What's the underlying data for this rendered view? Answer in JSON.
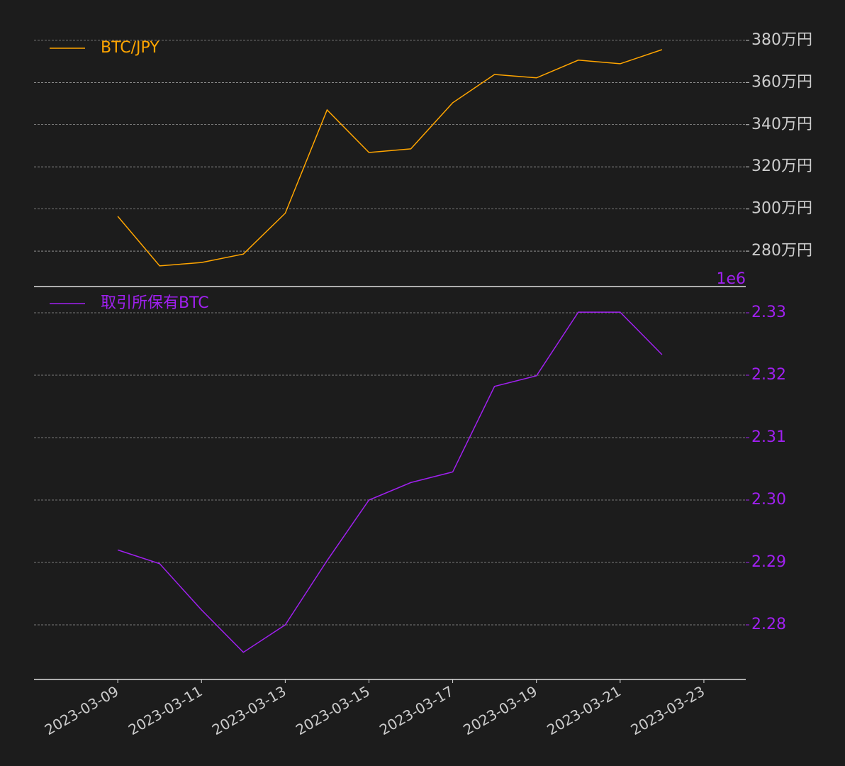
{
  "chart_data": [
    {
      "type": "line",
      "x": [
        "2023-03-09",
        "2023-03-10",
        "2023-03-11",
        "2023-03-12",
        "2023-03-13",
        "2023-03-14",
        "2023-03-15",
        "2023-03-16",
        "2023-03-17",
        "2023-03-18",
        "2023-03-19",
        "2023-03-20",
        "2023-03-21",
        "2023-03-22"
      ],
      "series": [
        {
          "name": "BTC/JPY",
          "color": "#ffa500",
          "values": [
            2965000,
            2730000,
            2746000,
            2786000,
            2980000,
            3470000,
            3268000,
            3285000,
            3504000,
            3638000,
            3622000,
            3706000,
            3689000,
            3756000
          ]
        }
      ],
      "xlim": [
        "2023-03-07",
        "2023-03-24"
      ],
      "ylim": [
        2632000,
        3840000
      ],
      "yticks": [
        {
          "value": 2800000,
          "label": "280万円"
        },
        {
          "value": 3000000,
          "label": "300万円"
        },
        {
          "value": 3200000,
          "label": "320万円"
        },
        {
          "value": 3400000,
          "label": "340万円"
        },
        {
          "value": 3600000,
          "label": "360万円"
        },
        {
          "value": 3800000,
          "label": "380万円"
        }
      ],
      "tick_color": "#cccccc",
      "grid": true,
      "legend": "upper left"
    },
    {
      "type": "line",
      "x": [
        "2023-03-09",
        "2023-03-10",
        "2023-03-11",
        "2023-03-12",
        "2023-03-13",
        "2023-03-14",
        "2023-03-15",
        "2023-03-16",
        "2023-03-17",
        "2023-03-18",
        "2023-03-19",
        "2023-03-20",
        "2023-03-21",
        "2023-03-22"
      ],
      "series": [
        {
          "name": "取引所保有BTC",
          "color": "#a020f0",
          "values": [
            2.292,
            2.2898,
            2.2824,
            2.2756,
            2.28,
            2.2903,
            2.3,
            2.3028,
            2.3045,
            2.3182,
            2.3199,
            2.3301,
            2.3301,
            2.3233
          ]
        }
      ],
      "xlim": [
        "2023-03-07",
        "2023-03-24"
      ],
      "ylim": [
        2.27125,
        2.33409
      ],
      "yticks": [
        2.28,
        2.29,
        {
          "value": 2.3,
          "label": "2.30"
        },
        2.31,
        2.32,
        2.33
      ],
      "y_offset_text": "1e6",
      "tick_color": "#a020f0",
      "xticks": [
        "2023-03-09",
        "2023-03-11",
        "2023-03-13",
        "2023-03-15",
        "2023-03-17",
        "2023-03-19",
        "2023-03-21",
        "2023-03-23"
      ],
      "grid": true,
      "legend": "upper left"
    }
  ]
}
